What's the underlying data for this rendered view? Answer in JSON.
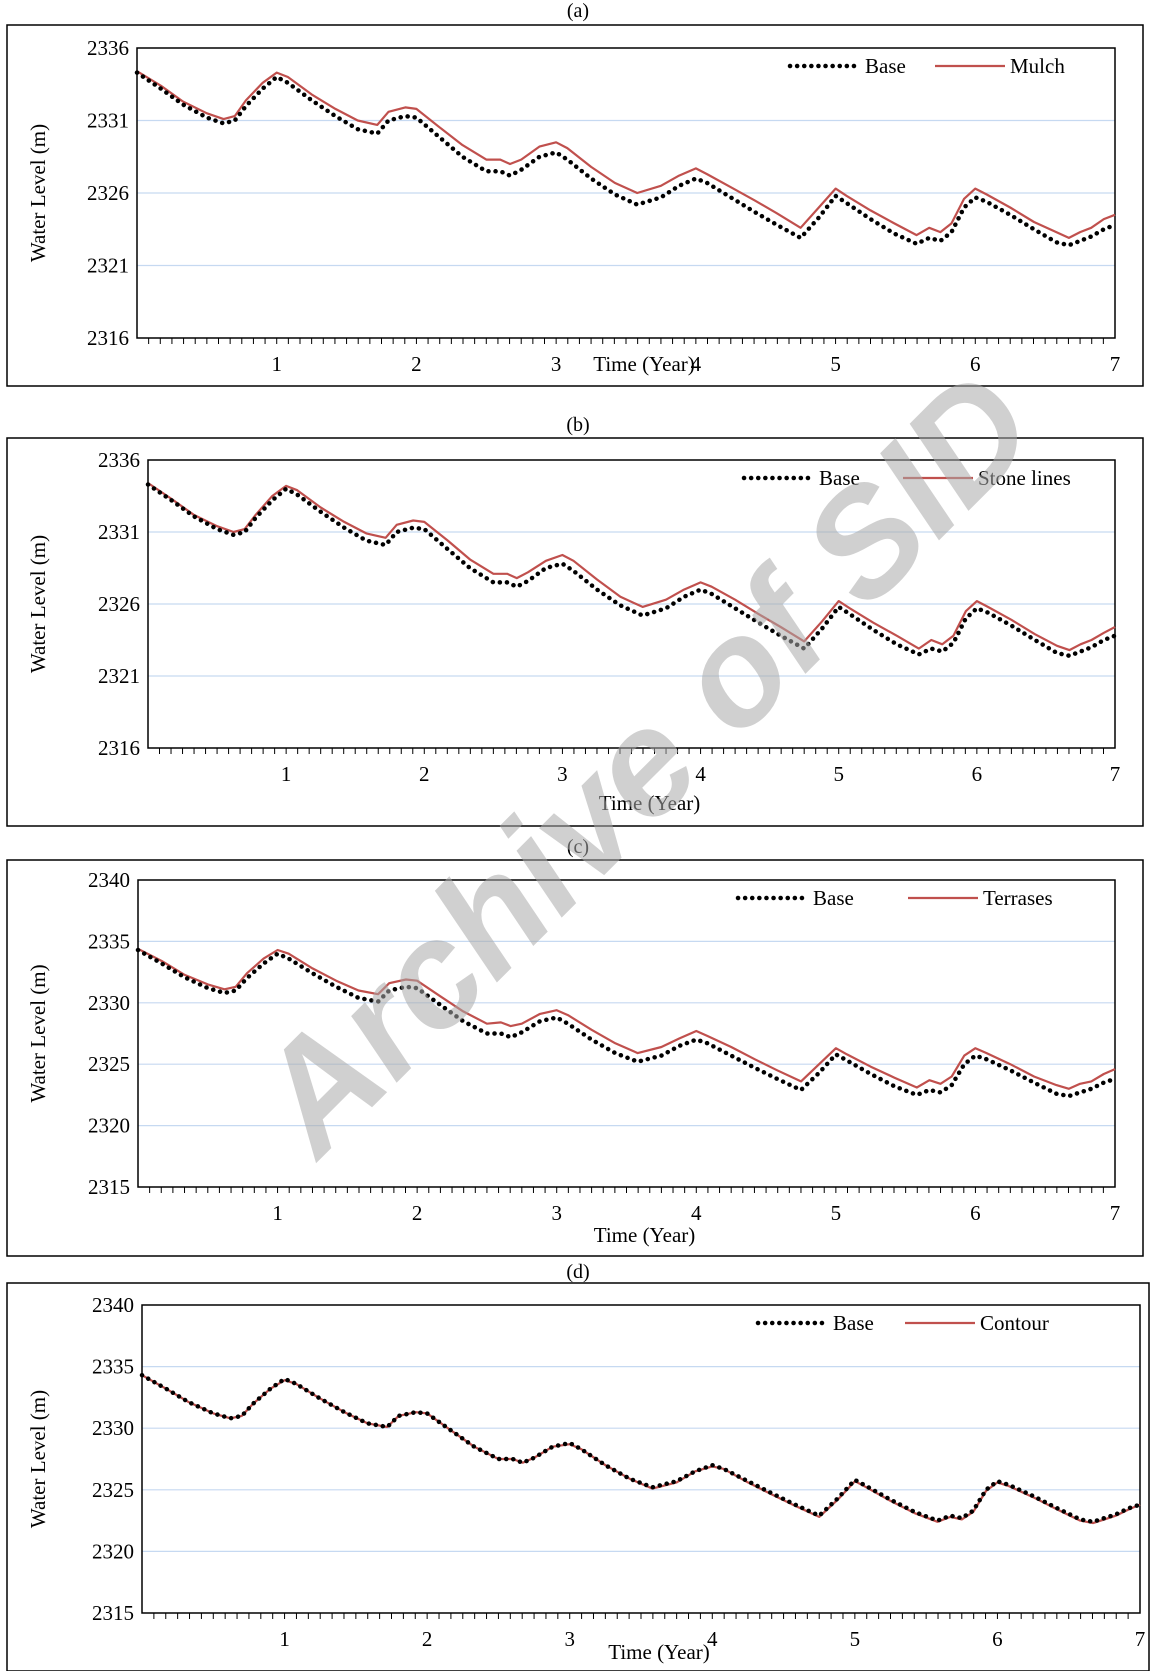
{
  "watermark": "Archive of SID",
  "colors": {
    "base": "#000000",
    "treatment": "#c0504d",
    "grid": "#c6d9f1",
    "frame": "#000000"
  },
  "chart_data": [
    {
      "type": "line",
      "panel_label": "(a)",
      "xlabel": "Time (Year)",
      "ylabel": "Water Level (m)",
      "xlim": [
        0,
        7
      ],
      "ylim": [
        2316,
        2336
      ],
      "xticks": [
        1,
        2,
        3,
        4,
        5,
        6,
        7
      ],
      "yticks": [
        2316,
        2321,
        2326,
        2331,
        2336
      ],
      "grid": "horizontal",
      "legend_position": "top-right",
      "x": [
        0,
        0.17,
        0.33,
        0.5,
        0.62,
        0.7,
        0.78,
        0.9,
        1,
        1.08,
        1.25,
        1.42,
        1.58,
        1.72,
        1.8,
        1.92,
        2,
        2.17,
        2.33,
        2.5,
        2.6,
        2.67,
        2.75,
        2.88,
        3,
        3.08,
        3.25,
        3.42,
        3.58,
        3.75,
        3.88,
        4,
        4.08,
        4.25,
        4.42,
        4.58,
        4.75,
        4.88,
        5,
        5.08,
        5.25,
        5.42,
        5.58,
        5.67,
        5.75,
        5.83,
        5.92,
        6,
        6.08,
        6.25,
        6.42,
        6.58,
        6.67,
        6.75,
        6.83,
        6.92,
        7
      ],
      "series": [
        {
          "name": "Base",
          "style": "dotted",
          "values": [
            2334.3,
            2333.2,
            2332.1,
            2331.2,
            2330.8,
            2331.0,
            2332.0,
            2333.2,
            2334.0,
            2333.6,
            2332.4,
            2331.3,
            2330.4,
            2330.1,
            2331.0,
            2331.3,
            2331.2,
            2329.8,
            2328.5,
            2327.5,
            2327.5,
            2327.2,
            2327.6,
            2328.5,
            2328.8,
            2328.3,
            2327.0,
            2325.9,
            2325.2,
            2325.7,
            2326.5,
            2327.0,
            2326.7,
            2325.7,
            2324.7,
            2323.8,
            2322.9,
            2324.3,
            2325.8,
            2325.3,
            2324.2,
            2323.2,
            2322.5,
            2322.9,
            2322.7,
            2323.3,
            2325.0,
            2325.7,
            2325.4,
            2324.5,
            2323.5,
            2322.6,
            2322.4,
            2322.7,
            2323.0,
            2323.5,
            2323.8
          ]
        },
        {
          "name": "Mulch",
          "style": "solid",
          "values": [
            2334.4,
            2333.4,
            2332.3,
            2331.5,
            2331.1,
            2331.3,
            2332.4,
            2333.6,
            2334.3,
            2334.0,
            2332.8,
            2331.8,
            2331.0,
            2330.7,
            2331.6,
            2331.9,
            2331.8,
            2330.5,
            2329.3,
            2328.3,
            2328.3,
            2328.0,
            2328.3,
            2329.2,
            2329.5,
            2329.1,
            2327.8,
            2326.7,
            2326.0,
            2326.5,
            2327.2,
            2327.7,
            2327.3,
            2326.4,
            2325.5,
            2324.6,
            2323.6,
            2325.0,
            2326.3,
            2325.8,
            2324.8,
            2323.9,
            2323.1,
            2323.6,
            2323.3,
            2323.9,
            2325.6,
            2326.3,
            2325.9,
            2325.0,
            2324.0,
            2323.3,
            2322.9,
            2323.3,
            2323.6,
            2324.2,
            2324.5
          ]
        }
      ]
    },
    {
      "type": "line",
      "panel_label": "(b)",
      "xlabel": "Time (Year)",
      "ylabel": "Water Level (m)",
      "xlim": [
        0,
        7
      ],
      "ylim": [
        2316,
        2336
      ],
      "xticks": [
        1,
        2,
        3,
        4,
        5,
        6,
        7
      ],
      "yticks": [
        2316,
        2321,
        2326,
        2331,
        2336
      ],
      "grid": "horizontal",
      "legend_position": "top-right",
      "x": [
        0,
        0.17,
        0.33,
        0.5,
        0.62,
        0.7,
        0.78,
        0.9,
        1,
        1.08,
        1.25,
        1.42,
        1.58,
        1.72,
        1.8,
        1.92,
        2,
        2.17,
        2.33,
        2.5,
        2.6,
        2.67,
        2.75,
        2.88,
        3,
        3.08,
        3.25,
        3.42,
        3.58,
        3.75,
        3.88,
        4,
        4.08,
        4.25,
        4.42,
        4.58,
        4.75,
        4.88,
        5,
        5.08,
        5.25,
        5.42,
        5.58,
        5.67,
        5.75,
        5.83,
        5.92,
        6,
        6.08,
        6.25,
        6.42,
        6.58,
        6.67,
        6.75,
        6.83,
        6.92,
        7
      ],
      "series": [
        {
          "name": "Base",
          "style": "dotted",
          "values": [
            2334.3,
            2333.2,
            2332.1,
            2331.2,
            2330.8,
            2331.0,
            2332.0,
            2333.2,
            2334.0,
            2333.6,
            2332.4,
            2331.3,
            2330.4,
            2330.1,
            2331.0,
            2331.3,
            2331.2,
            2329.8,
            2328.5,
            2327.5,
            2327.5,
            2327.2,
            2327.6,
            2328.5,
            2328.8,
            2328.3,
            2327.0,
            2325.9,
            2325.2,
            2325.7,
            2326.5,
            2327.0,
            2326.7,
            2325.7,
            2324.7,
            2323.8,
            2322.9,
            2324.3,
            2325.8,
            2325.3,
            2324.2,
            2323.2,
            2322.5,
            2322.9,
            2322.7,
            2323.3,
            2325.0,
            2325.7,
            2325.4,
            2324.5,
            2323.5,
            2322.6,
            2322.4,
            2322.7,
            2323.0,
            2323.5,
            2323.8
          ]
        },
        {
          "name": "Stone lines",
          "style": "solid",
          "values": [
            2334.4,
            2333.3,
            2332.2,
            2331.4,
            2331.0,
            2331.2,
            2332.2,
            2333.5,
            2334.2,
            2333.9,
            2332.7,
            2331.7,
            2330.9,
            2330.6,
            2331.5,
            2331.8,
            2331.7,
            2330.4,
            2329.1,
            2328.1,
            2328.1,
            2327.8,
            2328.2,
            2329.0,
            2329.4,
            2329.0,
            2327.7,
            2326.5,
            2325.8,
            2326.3,
            2327.0,
            2327.5,
            2327.2,
            2326.3,
            2325.3,
            2324.4,
            2323.4,
            2324.8,
            2326.2,
            2325.7,
            2324.7,
            2323.8,
            2322.9,
            2323.5,
            2323.2,
            2323.8,
            2325.5,
            2326.2,
            2325.8,
            2324.9,
            2323.9,
            2323.1,
            2322.8,
            2323.2,
            2323.5,
            2324.0,
            2324.4
          ]
        }
      ]
    },
    {
      "type": "line",
      "panel_label": "(c)",
      "xlabel": "Time (Year)",
      "ylabel": "Water Level (m)",
      "xlim": [
        0,
        7
      ],
      "ylim": [
        2315,
        2340
      ],
      "xticks": [
        1,
        2,
        3,
        4,
        5,
        6,
        7
      ],
      "yticks": [
        2315,
        2320,
        2325,
        2330,
        2335,
        2340
      ],
      "grid": "horizontal",
      "legend_position": "top-right",
      "x": [
        0,
        0.17,
        0.33,
        0.5,
        0.62,
        0.7,
        0.78,
        0.9,
        1,
        1.08,
        1.25,
        1.42,
        1.58,
        1.72,
        1.8,
        1.92,
        2,
        2.17,
        2.33,
        2.5,
        2.6,
        2.67,
        2.75,
        2.88,
        3,
        3.08,
        3.25,
        3.42,
        3.58,
        3.75,
        3.88,
        4,
        4.08,
        4.25,
        4.42,
        4.58,
        4.75,
        4.88,
        5,
        5.08,
        5.25,
        5.42,
        5.58,
        5.67,
        5.75,
        5.83,
        5.92,
        6,
        6.08,
        6.25,
        6.42,
        6.58,
        6.67,
        6.75,
        6.83,
        6.92,
        7
      ],
      "series": [
        {
          "name": "Base",
          "style": "dotted",
          "values": [
            2334.3,
            2333.2,
            2332.1,
            2331.2,
            2330.8,
            2331.0,
            2332.0,
            2333.2,
            2334.0,
            2333.6,
            2332.4,
            2331.3,
            2330.4,
            2330.1,
            2331.0,
            2331.3,
            2331.2,
            2329.8,
            2328.5,
            2327.5,
            2327.5,
            2327.2,
            2327.6,
            2328.5,
            2328.8,
            2328.3,
            2327.0,
            2325.9,
            2325.2,
            2325.7,
            2326.5,
            2327.0,
            2326.7,
            2325.7,
            2324.7,
            2323.8,
            2322.9,
            2324.3,
            2325.8,
            2325.3,
            2324.2,
            2323.2,
            2322.5,
            2322.9,
            2322.7,
            2323.3,
            2325.0,
            2325.7,
            2325.4,
            2324.5,
            2323.5,
            2322.6,
            2322.4,
            2322.7,
            2323.0,
            2323.5,
            2323.8
          ]
        },
        {
          "name": "Terrases",
          "style": "solid",
          "values": [
            2334.4,
            2333.4,
            2332.3,
            2331.5,
            2331.1,
            2331.3,
            2332.4,
            2333.6,
            2334.3,
            2334.0,
            2332.8,
            2331.8,
            2331.0,
            2330.7,
            2331.6,
            2331.9,
            2331.8,
            2330.5,
            2329.3,
            2328.3,
            2328.4,
            2328.1,
            2328.3,
            2329.1,
            2329.4,
            2329.0,
            2327.8,
            2326.7,
            2325.9,
            2326.4,
            2327.1,
            2327.7,
            2327.3,
            2326.4,
            2325.4,
            2324.5,
            2323.6,
            2325.0,
            2326.3,
            2325.8,
            2324.8,
            2323.9,
            2323.1,
            2323.7,
            2323.4,
            2324.0,
            2325.7,
            2326.3,
            2325.9,
            2325.0,
            2324.0,
            2323.3,
            2323.0,
            2323.4,
            2323.6,
            2324.2,
            2324.6
          ]
        }
      ]
    },
    {
      "type": "line",
      "panel_label": "(d)",
      "xlabel": "Time (Year)",
      "ylabel": "Water Level (m)",
      "xlim": [
        0,
        7
      ],
      "ylim": [
        2315,
        2340
      ],
      "xticks": [
        1,
        2,
        3,
        4,
        5,
        6,
        7
      ],
      "yticks": [
        2315,
        2320,
        2325,
        2330,
        2335,
        2340
      ],
      "grid": "horizontal",
      "legend_position": "top-right",
      "x": [
        0,
        0.17,
        0.33,
        0.5,
        0.62,
        0.7,
        0.78,
        0.9,
        1,
        1.08,
        1.25,
        1.42,
        1.58,
        1.72,
        1.8,
        1.92,
        2,
        2.17,
        2.33,
        2.5,
        2.6,
        2.67,
        2.75,
        2.88,
        3,
        3.08,
        3.25,
        3.42,
        3.58,
        3.75,
        3.88,
        4,
        4.08,
        4.25,
        4.42,
        4.58,
        4.75,
        4.88,
        5,
        5.08,
        5.25,
        5.42,
        5.58,
        5.67,
        5.75,
        5.83,
        5.92,
        6,
        6.08,
        6.25,
        6.42,
        6.58,
        6.67,
        6.75,
        6.83,
        6.92,
        7
      ],
      "series": [
        {
          "name": "Base",
          "style": "dotted",
          "values": [
            2334.3,
            2333.2,
            2332.1,
            2331.2,
            2330.8,
            2331.0,
            2332.0,
            2333.2,
            2334.0,
            2333.6,
            2332.4,
            2331.3,
            2330.4,
            2330.1,
            2331.0,
            2331.3,
            2331.2,
            2329.8,
            2328.5,
            2327.5,
            2327.5,
            2327.2,
            2327.6,
            2328.5,
            2328.8,
            2328.3,
            2327.0,
            2325.9,
            2325.2,
            2325.7,
            2326.5,
            2327.0,
            2326.7,
            2325.7,
            2324.7,
            2323.8,
            2322.9,
            2324.3,
            2325.8,
            2325.3,
            2324.2,
            2323.2,
            2322.5,
            2322.9,
            2322.7,
            2323.3,
            2325.0,
            2325.7,
            2325.4,
            2324.5,
            2323.5,
            2322.6,
            2322.4,
            2322.7,
            2323.0,
            2323.5,
            2323.8
          ]
        },
        {
          "name": "Contour",
          "style": "solid",
          "values": [
            2334.3,
            2333.2,
            2332.1,
            2331.2,
            2330.8,
            2331.0,
            2332.0,
            2333.2,
            2333.9,
            2333.6,
            2332.4,
            2331.3,
            2330.4,
            2330.1,
            2331.0,
            2331.3,
            2331.2,
            2329.8,
            2328.5,
            2327.5,
            2327.5,
            2327.2,
            2327.6,
            2328.5,
            2328.7,
            2328.3,
            2327.0,
            2325.9,
            2325.1,
            2325.6,
            2326.5,
            2326.9,
            2326.7,
            2325.6,
            2324.6,
            2323.7,
            2322.8,
            2324.2,
            2325.7,
            2325.2,
            2324.1,
            2323.1,
            2322.4,
            2322.8,
            2322.6,
            2323.2,
            2324.9,
            2325.6,
            2325.3,
            2324.4,
            2323.4,
            2322.5,
            2322.3,
            2322.6,
            2322.9,
            2323.4,
            2323.8
          ]
        }
      ]
    }
  ]
}
